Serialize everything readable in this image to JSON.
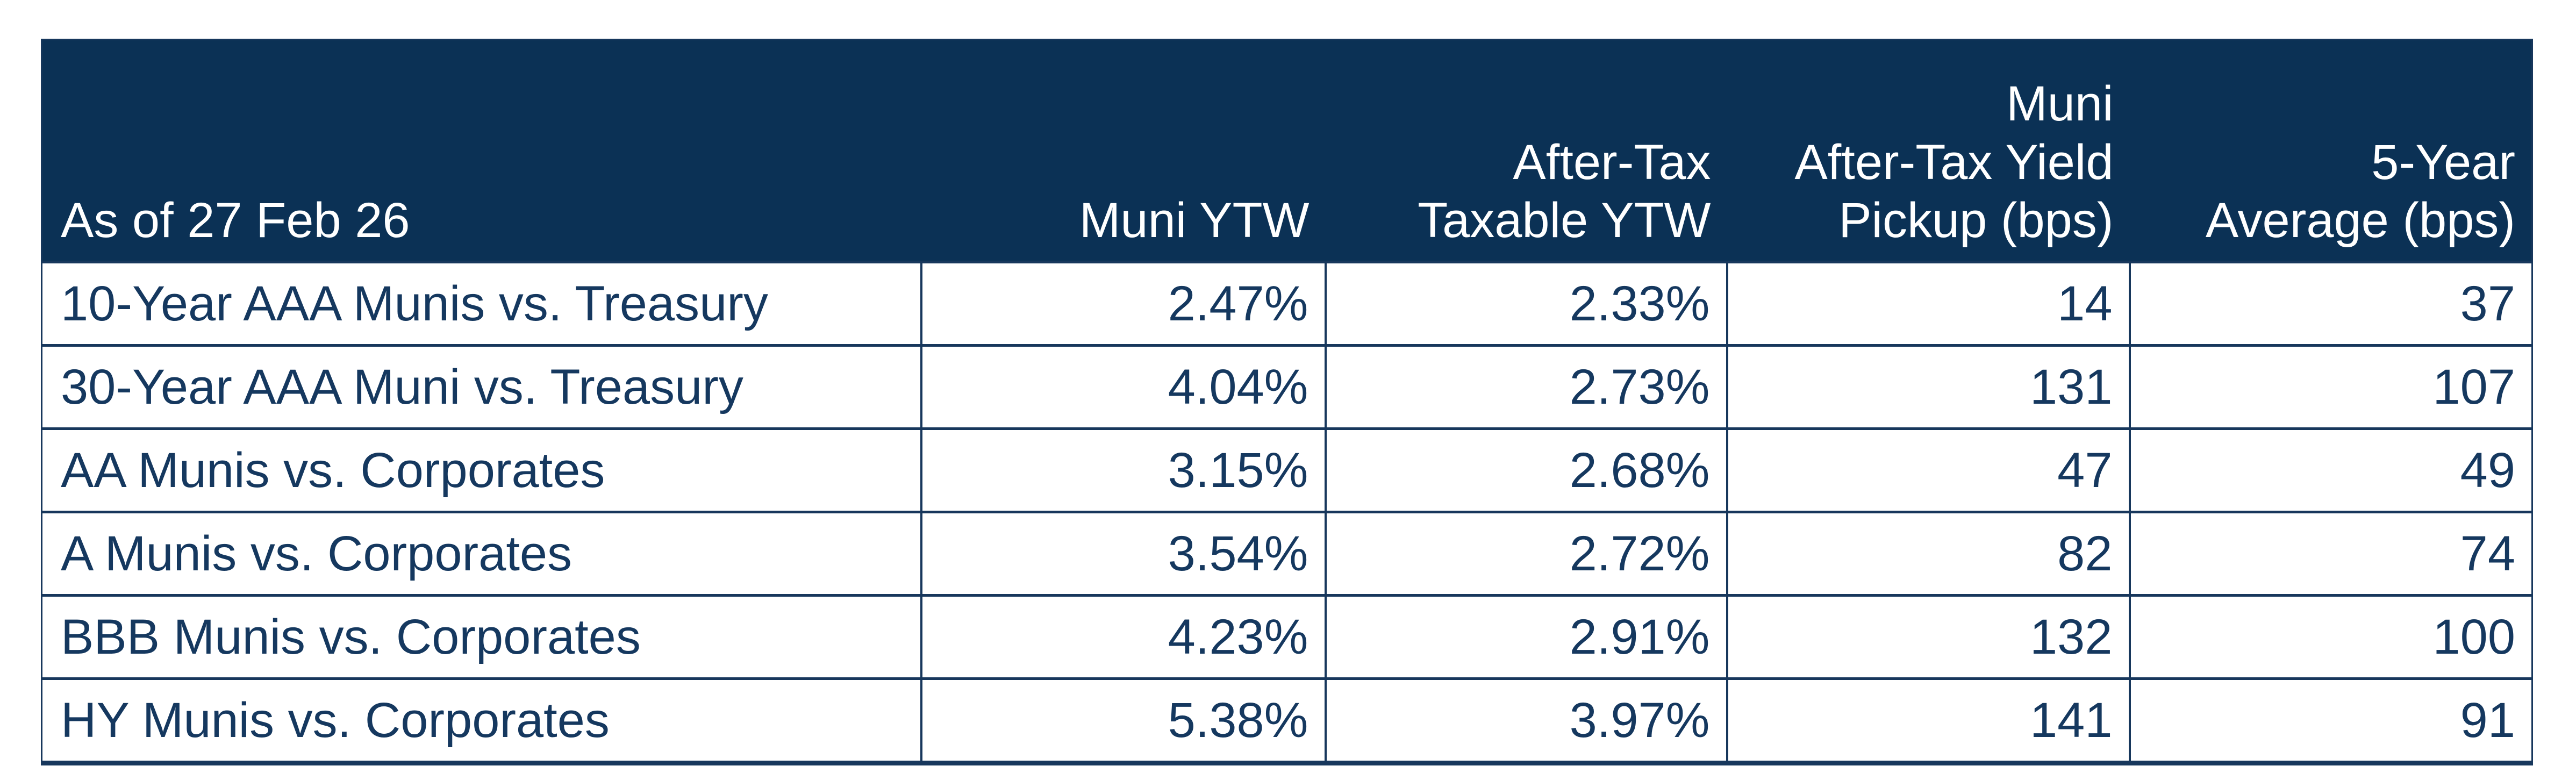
{
  "colors": {
    "header_background_navy": "#0b3155",
    "border_navy": "#17375c",
    "data_text_navy": "#15385f",
    "header_text": "#ffffff",
    "row_background": "#ffffff"
  },
  "table": {
    "as_of_label": "As of 27 Feb 26",
    "headers": {
      "muni_ytw": "Muni YTW",
      "after_tax_taxable_ytw": "After-Tax\nTaxable YTW",
      "pickup_bps": "Muni\nAfter-Tax Yield\nPickup (bps)",
      "five_year_avg_bps": "5-Year\nAverage (bps)"
    },
    "rows": [
      {
        "label": "10-Year AAA Munis vs. Treasury",
        "muni_ytw": "2.47%",
        "after_tax_taxable_ytw": "2.33%",
        "pickup_bps": "14",
        "five_year_avg_bps": "37"
      },
      {
        "label": "30-Year AAA Muni vs. Treasury",
        "muni_ytw": "4.04%",
        "after_tax_taxable_ytw": "2.73%",
        "pickup_bps": "131",
        "five_year_avg_bps": "107"
      },
      {
        "label": "AA Munis vs. Corporates",
        "muni_ytw": "3.15%",
        "after_tax_taxable_ytw": "2.68%",
        "pickup_bps": "47",
        "five_year_avg_bps": "49"
      },
      {
        "label": "A Munis vs. Corporates",
        "muni_ytw": "3.54%",
        "after_tax_taxable_ytw": "2.72%",
        "pickup_bps": "82",
        "five_year_avg_bps": "74"
      },
      {
        "label": "BBB Munis vs. Corporates",
        "muni_ytw": "4.23%",
        "after_tax_taxable_ytw": "2.91%",
        "pickup_bps": "132",
        "five_year_avg_bps": "100"
      },
      {
        "label": "HY Munis vs. Corporates",
        "muni_ytw": "5.38%",
        "after_tax_taxable_ytw": "3.97%",
        "pickup_bps": "141",
        "five_year_avg_bps": "91"
      }
    ]
  },
  "chart_data": {
    "type": "table",
    "columns": [
      "As of 27 Feb 26",
      "Muni YTW",
      "After-Tax Taxable YTW",
      "Muni After-Tax Yield Pickup (bps)",
      "5-Year Average (bps)"
    ],
    "rows": [
      [
        "10-Year AAA Munis vs. Treasury",
        "2.47%",
        "2.33%",
        14,
        37
      ],
      [
        "30-Year AAA Muni vs. Treasury",
        "4.04%",
        "2.73%",
        131,
        107
      ],
      [
        "AA Munis vs. Corporates",
        "3.15%",
        "2.68%",
        47,
        49
      ],
      [
        "A Munis vs. Corporates",
        "3.54%",
        "2.72%",
        82,
        74
      ],
      [
        "BBB Munis vs. Corporates",
        "4.23%",
        "2.91%",
        132,
        100
      ],
      [
        "HY Munis vs. Corporates",
        "5.38%",
        "3.97%",
        141,
        91
      ]
    ]
  }
}
